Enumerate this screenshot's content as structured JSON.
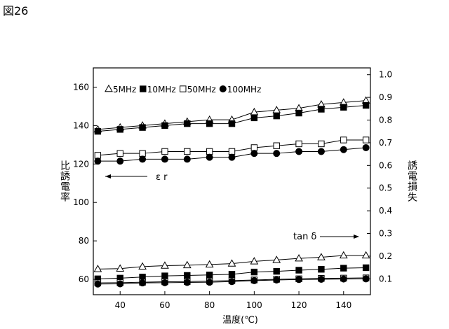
{
  "figure_label": "図26",
  "chart_data": {
    "type": "line",
    "title": "",
    "xlabel": "温度(℃)",
    "ylabel_left": "比誘電率",
    "ylabel_right": "誘電損失",
    "x_ticks": [
      40,
      60,
      80,
      100,
      120,
      140
    ],
    "xlim": [
      28,
      152
    ],
    "ylim_left": [
      52,
      170
    ],
    "y_ticks_left": [
      60,
      80,
      100,
      120,
      140,
      160
    ],
    "ylim_right": [
      0.03,
      1.03
    ],
    "y_ticks_right": [
      0.1,
      0.2,
      0.3,
      0.4,
      0.5,
      0.6,
      0.7,
      0.8,
      0.9,
      1.0
    ],
    "grid": false,
    "legend_placement": "top-left",
    "legend": [
      {
        "label": "5MHz",
        "marker": "triangle-open"
      },
      {
        "label": "10MHz",
        "marker": "square-filled"
      },
      {
        "label": "50MHz",
        "marker": "square-open"
      },
      {
        "label": "100MHz",
        "marker": "circle-filled"
      }
    ],
    "annotations": {
      "er": {
        "text": "ε r",
        "arrow": "left"
      },
      "tan": {
        "text": "tan δ",
        "arrow": "right"
      }
    },
    "x": [
      30,
      40,
      50,
      60,
      70,
      80,
      90,
      100,
      110,
      120,
      130,
      140,
      150
    ],
    "series": [
      {
        "name": "5MHz",
        "axis": "left",
        "group": "er",
        "marker": "triangle-open",
        "values": [
          138,
          139,
          140,
          141,
          142,
          143,
          143,
          147,
          148,
          149,
          151,
          152,
          153
        ]
      },
      {
        "name": "10MHz",
        "axis": "left",
        "group": "er",
        "marker": "square-filled",
        "values": [
          137,
          138,
          139,
          140,
          141,
          141,
          141,
          144,
          145,
          146.5,
          148.5,
          149.5,
          150.5
        ]
      },
      {
        "name": "50MHz",
        "axis": "left",
        "group": "er",
        "marker": "square-open",
        "values": [
          124.5,
          125.5,
          125.5,
          126.5,
          126.5,
          126.5,
          126.5,
          128.5,
          129.5,
          130.5,
          130.5,
          132.5,
          132.5
        ]
      },
      {
        "name": "100MHz",
        "axis": "left",
        "group": "er",
        "marker": "circle-filled",
        "values": [
          121.5,
          121.5,
          122.5,
          122.5,
          122.5,
          123.5,
          123.5,
          125.5,
          125.5,
          126.5,
          126.5,
          127.5,
          128.5
        ]
      },
      {
        "name": "5MHz",
        "axis": "right",
        "group": "tan",
        "marker": "triangle-open",
        "values": [
          0.143,
          0.145,
          0.154,
          0.158,
          0.16,
          0.163,
          0.167,
          0.177,
          0.183,
          0.19,
          0.195,
          0.203,
          0.203
        ]
      },
      {
        "name": "10MHz",
        "axis": "right",
        "group": "tan",
        "marker": "square-filled",
        "values": [
          0.1,
          0.103,
          0.108,
          0.113,
          0.115,
          0.117,
          0.12,
          0.13,
          0.133,
          0.138,
          0.142,
          0.147,
          0.149
        ]
      },
      {
        "name": "50MHz",
        "axis": "right",
        "group": "tan",
        "marker": "square-open",
        "values": [
          0.082,
          0.083,
          0.085,
          0.087,
          0.088,
          0.09,
          0.092,
          0.095,
          0.098,
          0.1,
          0.102,
          0.103,
          0.104
        ]
      },
      {
        "name": "100MHz",
        "axis": "right",
        "group": "tan",
        "marker": "circle-filled",
        "values": [
          0.077,
          0.078,
          0.082,
          0.083,
          0.084,
          0.085,
          0.088,
          0.092,
          0.095,
          0.097,
          0.098,
          0.099,
          0.1
        ]
      }
    ]
  }
}
